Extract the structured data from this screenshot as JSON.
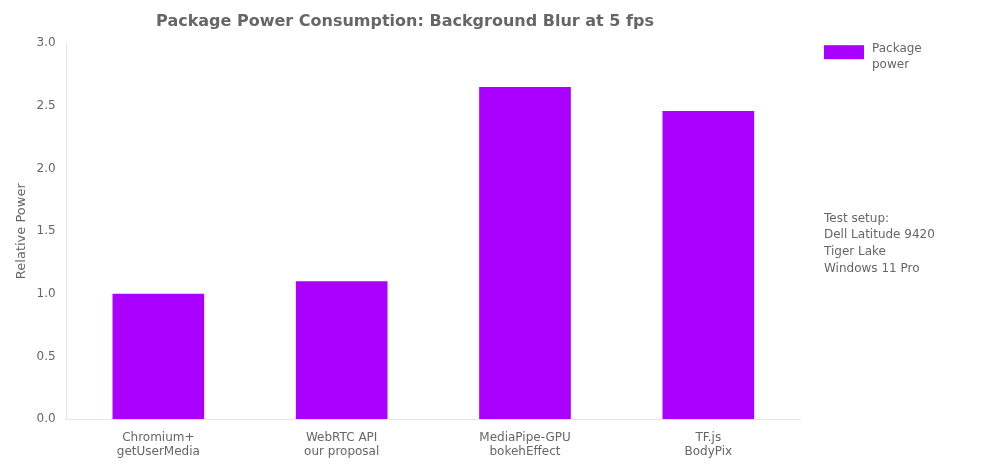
{
  "chart_data": {
    "type": "bar",
    "title": "Package Power Consumption: Background Blur at 5 fps",
    "ylabel": "Relative Power",
    "categories": [
      "Chromium+\ngetUserMedia",
      "WebRTC API\nour proposal",
      "MediaPipe-GPU\nbokehEffect",
      "TF.js\nBodyPix"
    ],
    "series": [
      {
        "name": "Package\npower",
        "color": "#aa00ff",
        "values": [
          1.0,
          1.1,
          2.65,
          2.46
        ]
      }
    ],
    "ylim": [
      0,
      3
    ],
    "yticks": [
      {
        "value": 0,
        "label": "0.0"
      },
      0.5,
      {
        "value": 1,
        "label": "1.0"
      },
      1.5,
      {
        "value": 2,
        "label": "2.0"
      },
      2.5,
      {
        "value": 3,
        "label": "3.0"
      }
    ],
    "grid": false,
    "legend": "right",
    "annotation": "Test setup:\nDell Latitude 9420\nTiger Lake\nWindows 11 Pro"
  }
}
